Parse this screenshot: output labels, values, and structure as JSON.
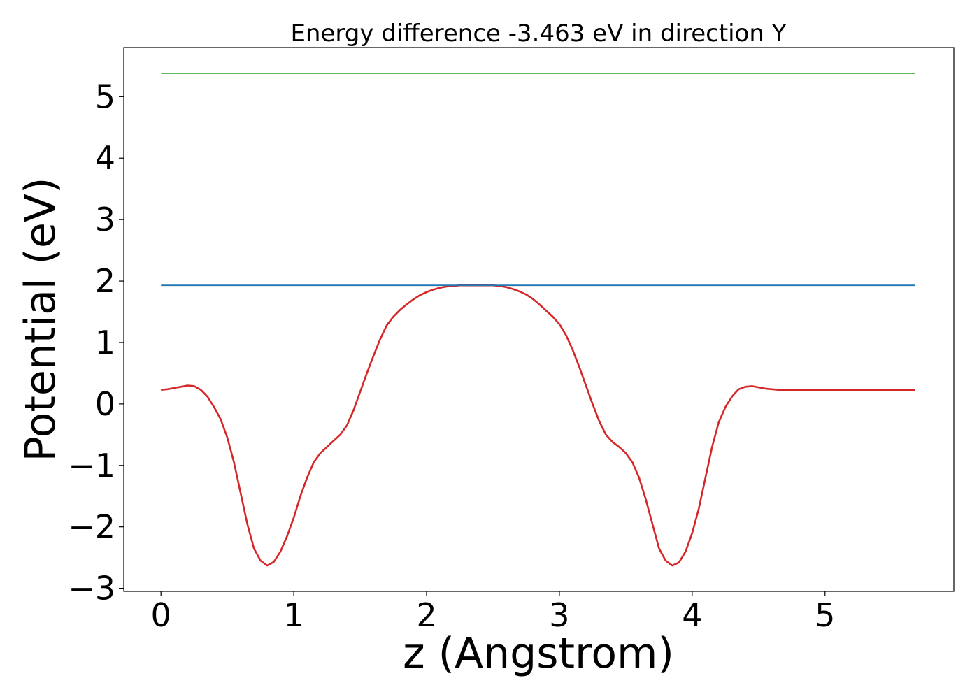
{
  "chart_data": {
    "type": "line",
    "title": "Energy difference -3.463 eV in direction Y",
    "xlabel": "z (Angstrom)",
    "ylabel": "Potential (eV)",
    "xlim": [
      -0.28,
      5.97
    ],
    "ylim": [
      -3.05,
      5.8
    ],
    "xticks": [
      0,
      1,
      2,
      3,
      4,
      5
    ],
    "xtick_labels": [
      "0",
      "1",
      "2",
      "3",
      "4",
      "5"
    ],
    "yticks": [
      -3,
      -2,
      -1,
      0,
      1,
      2,
      3,
      4,
      5
    ],
    "ytick_labels": [
      "−3",
      "−2",
      "−1",
      "0",
      "1",
      "2",
      "3",
      "4",
      "5"
    ],
    "grid": false,
    "series": [
      {
        "color": "#d62728",
        "x": [
          0,
          0.05,
          0.1,
          0.15,
          0.2,
          0.25,
          0.3,
          0.35,
          0.4,
          0.45,
          0.5,
          0.55,
          0.6,
          0.65,
          0.7,
          0.75,
          0.8,
          0.85,
          0.9,
          0.95,
          1.0,
          1.05,
          1.1,
          1.15,
          1.2,
          1.25,
          1.3,
          1.35,
          1.4,
          1.45,
          1.5,
          1.55,
          1.6,
          1.65,
          1.7,
          1.75,
          1.8,
          1.85,
          1.9,
          1.95,
          2.0,
          2.05,
          2.1,
          2.15,
          2.2,
          2.25,
          2.3,
          2.35,
          2.4,
          2.45,
          2.5,
          2.55,
          2.6,
          2.65,
          2.7,
          2.75,
          2.8,
          2.85,
          2.9,
          2.95,
          3.0,
          3.05,
          3.1,
          3.15,
          3.2,
          3.25,
          3.3,
          3.35,
          3.4,
          3.45,
          3.5,
          3.55,
          3.6,
          3.65,
          3.7,
          3.75,
          3.8,
          3.85,
          3.9,
          3.95,
          4.0,
          4.05,
          4.1,
          4.15,
          4.2,
          4.25,
          4.3,
          4.35,
          4.4,
          4.45,
          4.5,
          4.55,
          4.6,
          4.65,
          4.7,
          4.75,
          4.8,
          4.85,
          4.9,
          4.95,
          5.0,
          5.05,
          5.1,
          5.15,
          5.2,
          5.25,
          5.3,
          5.35,
          5.4,
          5.45,
          5.5,
          5.55,
          5.6,
          5.65,
          5.68
        ],
        "y": [
          0.23,
          0.24,
          0.26,
          0.28,
          0.3,
          0.29,
          0.23,
          0.12,
          -0.05,
          -0.25,
          -0.55,
          -0.95,
          -1.45,
          -1.95,
          -2.35,
          -2.55,
          -2.63,
          -2.57,
          -2.4,
          -2.15,
          -1.85,
          -1.5,
          -1.2,
          -0.95,
          -0.8,
          -0.7,
          -0.6,
          -0.5,
          -0.35,
          -0.1,
          0.2,
          0.5,
          0.78,
          1.05,
          1.28,
          1.42,
          1.53,
          1.62,
          1.7,
          1.77,
          1.82,
          1.86,
          1.89,
          1.91,
          1.92,
          1.93,
          1.93,
          1.93,
          1.93,
          1.93,
          1.93,
          1.92,
          1.9,
          1.87,
          1.83,
          1.78,
          1.71,
          1.62,
          1.52,
          1.42,
          1.3,
          1.12,
          0.88,
          0.6,
          0.3,
          0.0,
          -0.28,
          -0.5,
          -0.62,
          -0.7,
          -0.8,
          -0.95,
          -1.2,
          -1.55,
          -1.95,
          -2.35,
          -2.55,
          -2.63,
          -2.58,
          -2.4,
          -2.1,
          -1.7,
          -1.2,
          -0.7,
          -0.3,
          -0.05,
          0.12,
          0.24,
          0.28,
          0.29,
          0.27,
          0.25,
          0.24,
          0.23,
          0.23,
          0.23,
          0.23,
          0.23,
          0.23,
          0.23,
          0.23,
          0.23,
          0.23,
          0.23,
          0.23,
          0.23,
          0.23,
          0.23,
          0.23,
          0.23,
          0.23,
          0.23,
          0.23,
          0.23,
          0.23
        ]
      },
      {
        "color": "#1f77b4",
        "x": [
          0,
          5.68
        ],
        "y": [
          1.93,
          1.93
        ]
      },
      {
        "color": "#2ca02c",
        "x": [
          0,
          5.68
        ],
        "y": [
          5.38,
          5.38
        ]
      }
    ]
  }
}
